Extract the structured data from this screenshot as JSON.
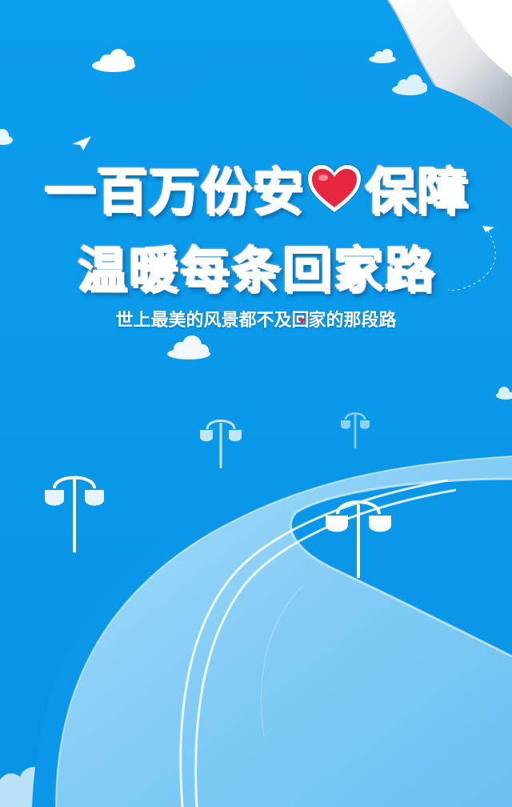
{
  "headline": {
    "line1_before": "一百万份安",
    "line1_after": "保障",
    "line2": "温暖每条回家路"
  },
  "subtitle": {
    "before": "世上最美的风景都不及回",
    "after": "家的那段路"
  },
  "colors": {
    "sky": "#0a9bea",
    "road": "#7fcaf6",
    "heart": "#e8263f",
    "text_outline": "#0d72b8"
  },
  "icons": [
    "heart-icon",
    "paper-plane-icon",
    "cloud-icon",
    "street-lamp-icon"
  ]
}
